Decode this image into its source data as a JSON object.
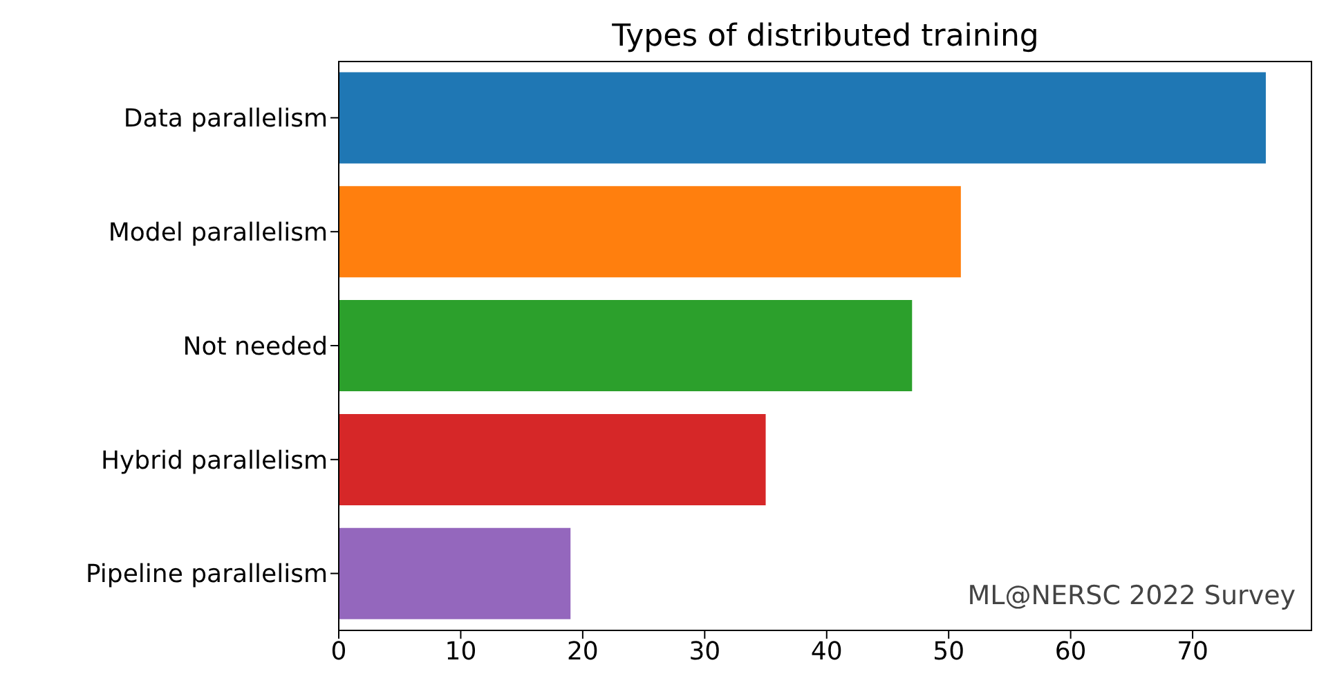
{
  "chart_data": {
    "type": "bar",
    "orientation": "horizontal",
    "title": "Types of distributed training",
    "categories": [
      "Data parallelism",
      "Model parallelism",
      "Not needed",
      "Hybrid parallelism",
      "Pipeline parallelism"
    ],
    "values": [
      76,
      51,
      47,
      35,
      19
    ],
    "colors": [
      "#1f77b4",
      "#ff7f0e",
      "#2ca02c",
      "#d62728",
      "#9467bd"
    ],
    "xlim": [
      0,
      79.8
    ],
    "xticks": [
      0,
      10,
      20,
      30,
      40,
      50,
      60,
      70
    ],
    "grid": false,
    "annotations": [
      "ML@NERSC 2022 Survey"
    ]
  }
}
